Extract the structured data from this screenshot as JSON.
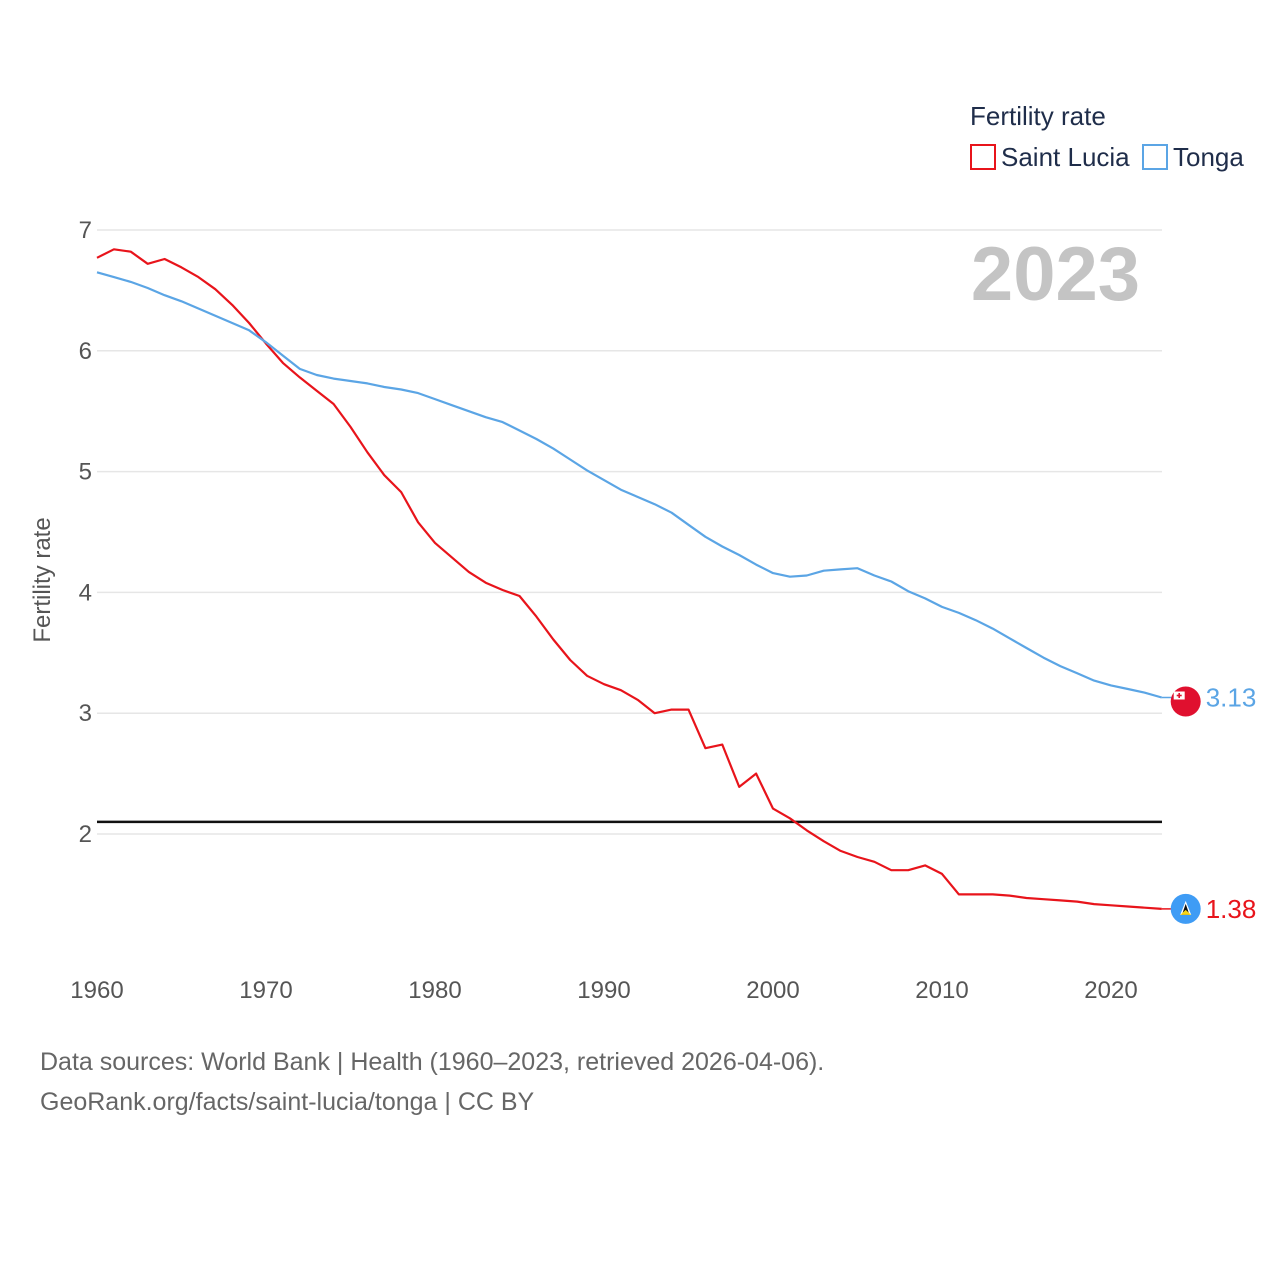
{
  "chart_data": {
    "type": "line",
    "year_display": "2023",
    "ylabel": "Fertility rate",
    "xlim": [
      1960,
      2023
    ],
    "ylim": [
      1.0,
      7.0
    ],
    "yticks": [
      2,
      3,
      4,
      5,
      6,
      7
    ],
    "xticks": [
      1960,
      1970,
      1980,
      1990,
      2000,
      2010,
      2020
    ],
    "reference_line": 2.1,
    "legend": {
      "title": "Fertility rate",
      "position": "top-right"
    },
    "x": [
      1960,
      1961,
      1962,
      1963,
      1964,
      1965,
      1966,
      1967,
      1968,
      1969,
      1970,
      1971,
      1972,
      1973,
      1974,
      1975,
      1976,
      1977,
      1978,
      1979,
      1980,
      1981,
      1982,
      1983,
      1984,
      1985,
      1986,
      1987,
      1988,
      1989,
      1990,
      1991,
      1992,
      1993,
      1994,
      1995,
      1996,
      1997,
      1998,
      1999,
      2000,
      2001,
      2002,
      2003,
      2004,
      2005,
      2006,
      2007,
      2008,
      2009,
      2010,
      2011,
      2012,
      2013,
      2014,
      2015,
      2016,
      2017,
      2018,
      2019,
      2020,
      2021,
      2022,
      2023
    ],
    "series": [
      {
        "name": "Saint Lucia",
        "color": "#e8141b",
        "end_label": "1.38",
        "values": [
          6.77,
          6.84,
          6.82,
          6.72,
          6.76,
          6.69,
          6.61,
          6.51,
          6.38,
          6.23,
          6.06,
          5.9,
          5.78,
          5.67,
          5.56,
          5.37,
          5.16,
          4.97,
          4.83,
          4.58,
          4.41,
          4.29,
          4.17,
          4.08,
          4.02,
          3.97,
          3.8,
          3.61,
          3.44,
          3.31,
          3.24,
          3.19,
          3.11,
          3.0,
          3.03,
          3.03,
          2.71,
          2.74,
          2.39,
          2.5,
          2.21,
          2.13,
          2.03,
          1.94,
          1.86,
          1.81,
          1.77,
          1.7,
          1.7,
          1.74,
          1.67,
          1.5,
          1.5,
          1.5,
          1.49,
          1.47,
          1.46,
          1.45,
          1.44,
          1.42,
          1.41,
          1.4,
          1.39,
          1.38
        ]
      },
      {
        "name": "Tonga",
        "color": "#5ba5e5",
        "end_label": "3.13",
        "values": [
          6.65,
          6.61,
          6.57,
          6.52,
          6.46,
          6.41,
          6.35,
          6.29,
          6.23,
          6.17,
          6.07,
          5.96,
          5.85,
          5.8,
          5.77,
          5.75,
          5.73,
          5.7,
          5.68,
          5.65,
          5.6,
          5.55,
          5.5,
          5.45,
          5.41,
          5.34,
          5.27,
          5.19,
          5.1,
          5.01,
          4.93,
          4.85,
          4.79,
          4.73,
          4.66,
          4.56,
          4.46,
          4.38,
          4.31,
          4.23,
          4.16,
          4.13,
          4.14,
          4.18,
          4.19,
          4.2,
          4.14,
          4.09,
          4.01,
          3.95,
          3.88,
          3.83,
          3.77,
          3.7,
          3.62,
          3.54,
          3.46,
          3.39,
          3.33,
          3.27,
          3.23,
          3.2,
          3.17,
          3.13
        ]
      }
    ]
  },
  "legend_labels": [
    "Saint Lucia",
    "Tonga"
  ],
  "footer": {
    "line1": "Data sources: World Bank | Health (1960–2023, retrieved 2026-04-06).",
    "line2": "GeoRank.org/facts/saint-lucia/tonga | CC BY"
  },
  "icons": {
    "tonga": "tonga-flag-icon",
    "saint_lucia": "saint-lucia-flag-icon"
  },
  "colors": {
    "grid": "#e6e6e6",
    "reference": "#111111",
    "tonga_flag_red": "#e0102f",
    "saint_lucia_flag_blue": "#3f9cf5",
    "saint_lucia_flag_yellow": "#f7d417"
  }
}
